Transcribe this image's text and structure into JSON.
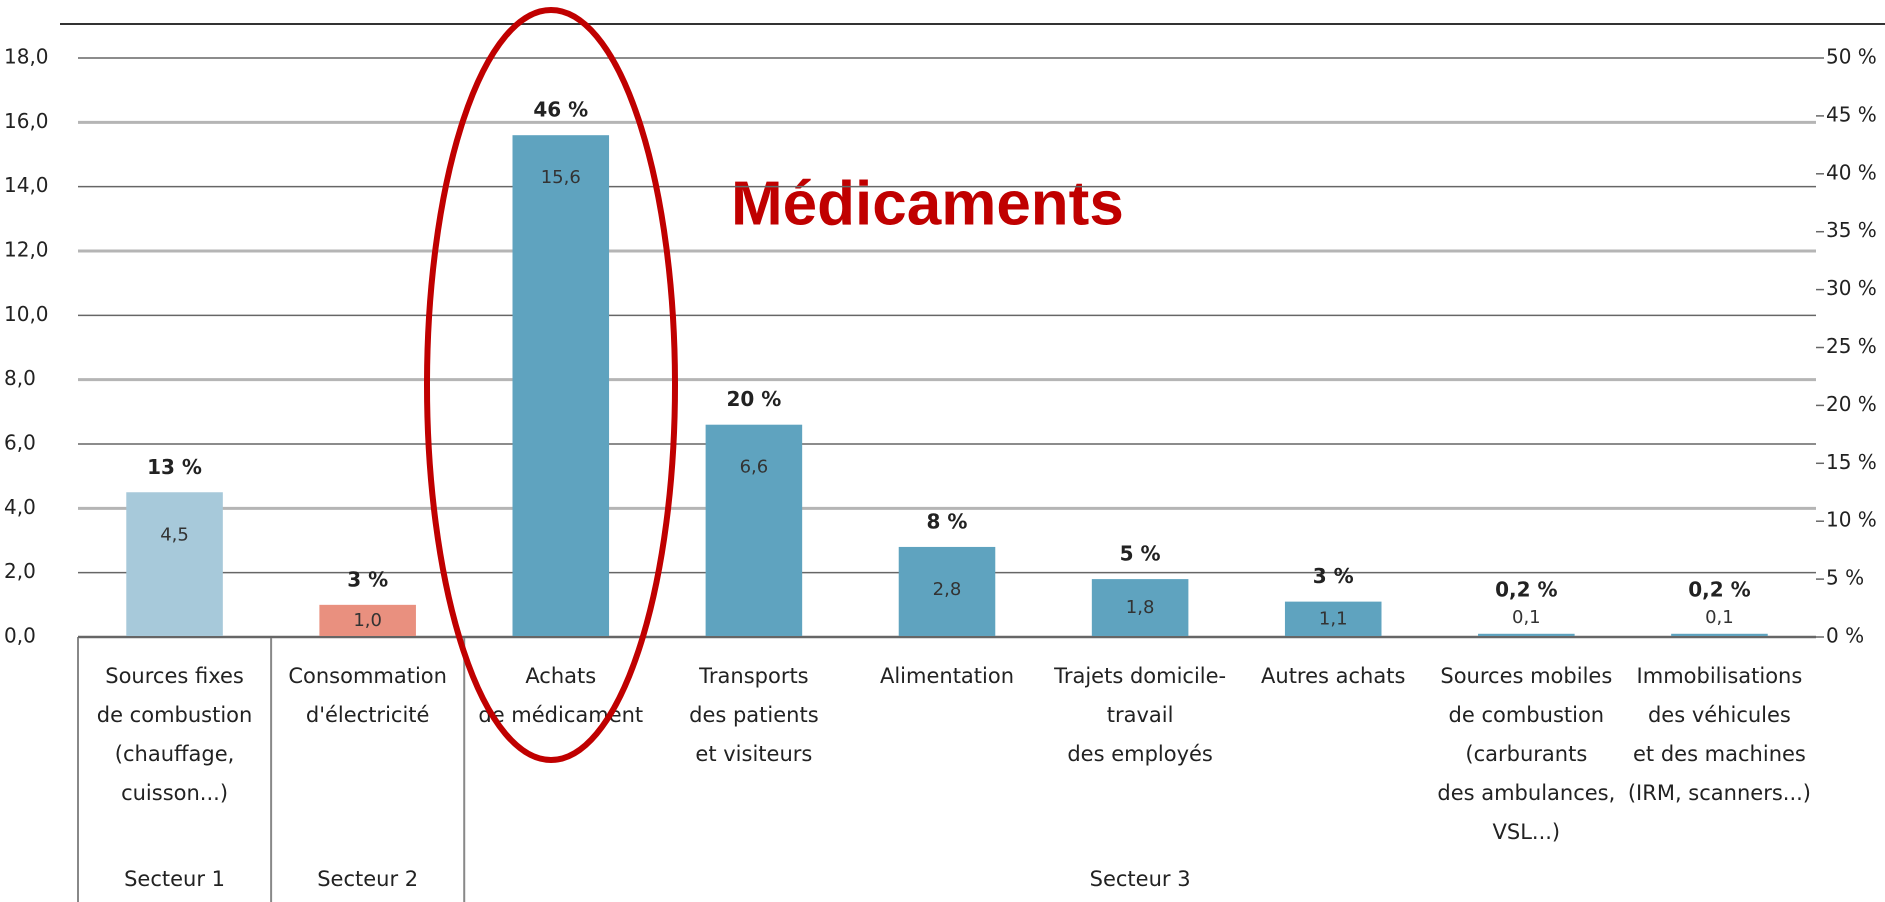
{
  "chart_data": {
    "type": "bar",
    "annotation": "Médicaments",
    "groups": [
      {
        "label": "Secteur 1",
        "categories": [
          [
            "Sources fixes",
            "de combustion",
            "(chauffage,",
            "cuisson...)"
          ]
        ]
      },
      {
        "label": "Secteur 2",
        "categories": [
          [
            "Consommation",
            "d'électricité"
          ]
        ]
      },
      {
        "label": "Secteur 3",
        "categories": [
          [
            "Achats",
            "de médicament"
          ],
          [
            "Transports",
            "des patients",
            "et visiteurs"
          ],
          [
            "Alimentation"
          ],
          [
            "Trajets domicile-",
            "travail",
            "des employés"
          ],
          [
            "Autres achats"
          ],
          [
            "Sources mobiles",
            "de combustion",
            "(carburants",
            "des ambulances,",
            "VSL...)"
          ],
          [
            "Immobilisations",
            "des véhicules",
            "et des machines",
            "(IRM, scanners...)"
          ]
        ]
      }
    ],
    "values": [
      4.5,
      1.0,
      15.6,
      6.6,
      2.8,
      1.8,
      1.1,
      0.1,
      0.1
    ],
    "value_labels": [
      "4,5",
      "1,0",
      "15,6",
      "6,6",
      "2,8",
      "1,8",
      "1,1",
      "0,1",
      "0,1"
    ],
    "shares": [
      13,
      3,
      46,
      20,
      8,
      5,
      3,
      0.2,
      0.2
    ],
    "share_labels": [
      "13 %",
      "3 %",
      "46 %",
      "20 %",
      "8 %",
      "5 %",
      "3 %",
      "0,2 %",
      "0,2 %"
    ],
    "colors": [
      "#a7c9da",
      "#e9907f",
      "#5fa3bf",
      "#5fa3bf",
      "#5fa3bf",
      "#5fa3bf",
      "#5fa3bf",
      "#5fa3bf",
      "#5fa3bf"
    ],
    "ylim": [
      0,
      18
    ],
    "yticks": [
      {
        "value": 0,
        "label": "0,0"
      },
      {
        "value": 2,
        "label": "2,0"
      },
      {
        "value": 4,
        "label": "4,0"
      },
      {
        "value": 6,
        "label": "6,0"
      },
      {
        "value": 8,
        "label": "8,0"
      },
      {
        "value": 10,
        "label": "10,0"
      },
      {
        "value": 12,
        "label": "12,0"
      },
      {
        "value": 14,
        "label": "14,0"
      },
      {
        "value": 16,
        "label": "16,0"
      },
      {
        "value": 18,
        "label": "18,0"
      }
    ],
    "y2lim": [
      0,
      50
    ],
    "y2ticks": [
      {
        "value": 0,
        "label": "0 %"
      },
      {
        "value": 5,
        "label": "5 %"
      },
      {
        "value": 10,
        "label": "10 %"
      },
      {
        "value": 15,
        "label": "15 %"
      },
      {
        "value": 20,
        "label": "20 %"
      },
      {
        "value": 25,
        "label": "25 %"
      },
      {
        "value": 30,
        "label": "30 %"
      },
      {
        "value": 35,
        "label": "35 %"
      },
      {
        "value": 40,
        "label": "40 %"
      },
      {
        "value": 45,
        "label": "45 %"
      },
      {
        "value": 50,
        "label": "50 %"
      }
    ],
    "grid": true
  }
}
